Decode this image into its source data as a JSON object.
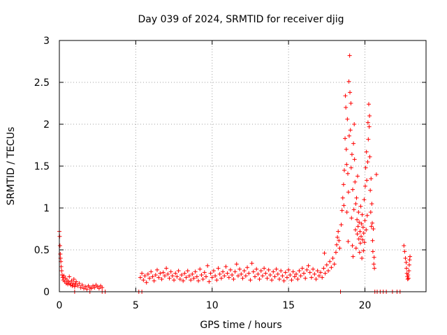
{
  "chart_data": {
    "type": "scatter",
    "title": "Day 039 of 2024, SRMTID for receiver djig",
    "xlabel": "GPS time / hours",
    "ylabel": "SRMTID / TECUs",
    "xlim": [
      0,
      24
    ],
    "ylim": [
      0,
      3
    ],
    "xticks": [
      0,
      5,
      10,
      15,
      20
    ],
    "xtick_labels": [
      "0",
      "5",
      "10",
      "15",
      "20"
    ],
    "yticks": [
      0,
      0.5,
      1,
      1.5,
      2,
      2.5,
      3
    ],
    "ytick_labels": [
      "0",
      "0.5",
      "1",
      "1.5",
      "2",
      "2.5",
      "3"
    ],
    "grid": true,
    "marker": "plus",
    "series_color": "#ff0000",
    "series": [
      {
        "name": "SRMTID",
        "points": [
          [
            0.0,
            0.72
          ],
          [
            0.02,
            0.66
          ],
          [
            0.04,
            0.55
          ],
          [
            0.06,
            0.45
          ],
          [
            0.08,
            0.4
          ],
          [
            0.1,
            0.36
          ],
          [
            0.12,
            0.3
          ],
          [
            0.15,
            0.25
          ],
          [
            0.18,
            0.2
          ],
          [
            0.22,
            0.17
          ],
          [
            0.26,
            0.14
          ],
          [
            0.3,
            0.19
          ],
          [
            0.35,
            0.12
          ],
          [
            0.4,
            0.16
          ],
          [
            0.45,
            0.1
          ],
          [
            0.5,
            0.14
          ],
          [
            0.55,
            0.09
          ],
          [
            0.6,
            0.12
          ],
          [
            0.65,
            0.18
          ],
          [
            0.7,
            0.1
          ],
          [
            0.75,
            0.08
          ],
          [
            0.8,
            0.13
          ],
          [
            0.85,
            0.07
          ],
          [
            0.9,
            0.1
          ],
          [
            0.95,
            0.15
          ],
          [
            1.0,
            0.06
          ],
          [
            1.0,
            0.0
          ],
          [
            1.05,
            0.09
          ],
          [
            1.1,
            0.12
          ],
          [
            1.2,
            0.07
          ],
          [
            1.3,
            0.1
          ],
          [
            1.4,
            0.05
          ],
          [
            1.5,
            0.08
          ],
          [
            1.6,
            0.04
          ],
          [
            1.7,
            0.06
          ],
          [
            1.8,
            0.03
          ],
          [
            1.9,
            0.07
          ],
          [
            2.0,
            0.05
          ],
          [
            2.0,
            0.0
          ],
          [
            2.1,
            0.04
          ],
          [
            2.2,
            0.07
          ],
          [
            2.3,
            0.05
          ],
          [
            2.4,
            0.08
          ],
          [
            2.5,
            0.06
          ],
          [
            2.6,
            0.04
          ],
          [
            2.7,
            0.07
          ],
          [
            2.8,
            0.05
          ],
          [
            2.8,
            0.0
          ],
          [
            3.0,
            0.0
          ],
          [
            5.2,
            0.0
          ],
          [
            5.4,
            0.0
          ],
          [
            5.3,
            0.17
          ],
          [
            5.4,
            0.22
          ],
          [
            5.5,
            0.14
          ],
          [
            5.6,
            0.19
          ],
          [
            5.7,
            0.11
          ],
          [
            5.8,
            0.21
          ],
          [
            5.9,
            0.16
          ],
          [
            6.0,
            0.24
          ],
          [
            6.1,
            0.18
          ],
          [
            6.2,
            0.13
          ],
          [
            6.3,
            0.2
          ],
          [
            6.4,
            0.26
          ],
          [
            6.5,
            0.17
          ],
          [
            6.6,
            0.22
          ],
          [
            6.7,
            0.15
          ],
          [
            6.8,
            0.23
          ],
          [
            6.9,
            0.19
          ],
          [
            7.0,
            0.28
          ],
          [
            7.1,
            0.21
          ],
          [
            7.2,
            0.16
          ],
          [
            7.3,
            0.24
          ],
          [
            7.4,
            0.19
          ],
          [
            7.5,
            0.14
          ],
          [
            7.6,
            0.22
          ],
          [
            7.7,
            0.18
          ],
          [
            7.8,
            0.25
          ],
          [
            7.9,
            0.15
          ],
          [
            8.0,
            0.2
          ],
          [
            8.1,
            0.13
          ],
          [
            8.2,
            0.22
          ],
          [
            8.3,
            0.17
          ],
          [
            8.4,
            0.25
          ],
          [
            8.5,
            0.19
          ],
          [
            8.6,
            0.14
          ],
          [
            8.7,
            0.21
          ],
          [
            8.8,
            0.16
          ],
          [
            8.9,
            0.24
          ],
          [
            9.0,
            0.18
          ],
          [
            9.1,
            0.13
          ],
          [
            9.2,
            0.27
          ],
          [
            9.3,
            0.2
          ],
          [
            9.4,
            0.15
          ],
          [
            9.5,
            0.23
          ],
          [
            9.6,
            0.18
          ],
          [
            9.7,
            0.31
          ],
          [
            9.8,
            0.12
          ],
          [
            9.9,
            0.22
          ],
          [
            10.0,
            0.17
          ],
          [
            10.1,
            0.25
          ],
          [
            10.2,
            0.19
          ],
          [
            10.3,
            0.14
          ],
          [
            10.4,
            0.28
          ],
          [
            10.5,
            0.21
          ],
          [
            10.6,
            0.16
          ],
          [
            10.7,
            0.24
          ],
          [
            10.8,
            0.19
          ],
          [
            10.9,
            0.3
          ],
          [
            11.0,
            0.22
          ],
          [
            11.1,
            0.17
          ],
          [
            11.2,
            0.26
          ],
          [
            11.3,
            0.2
          ],
          [
            11.4,
            0.15
          ],
          [
            11.5,
            0.24
          ],
          [
            11.6,
            0.33
          ],
          [
            11.7,
            0.19
          ],
          [
            11.8,
            0.27
          ],
          [
            11.9,
            0.21
          ],
          [
            12.0,
            0.16
          ],
          [
            12.1,
            0.25
          ],
          [
            12.2,
            0.19
          ],
          [
            12.3,
            0.29
          ],
          [
            12.4,
            0.22
          ],
          [
            12.5,
            0.14
          ],
          [
            12.6,
            0.34
          ],
          [
            12.7,
            0.24
          ],
          [
            12.8,
            0.18
          ],
          [
            12.9,
            0.27
          ],
          [
            13.0,
            0.21
          ],
          [
            13.1,
            0.15
          ],
          [
            13.2,
            0.25
          ],
          [
            13.3,
            0.19
          ],
          [
            13.4,
            0.28
          ],
          [
            13.5,
            0.22
          ],
          [
            13.6,
            0.16
          ],
          [
            13.7,
            0.26
          ],
          [
            13.8,
            0.2
          ],
          [
            13.9,
            0.14
          ],
          [
            14.0,
            0.24
          ],
          [
            14.1,
            0.18
          ],
          [
            14.2,
            0.27
          ],
          [
            14.3,
            0.21
          ],
          [
            14.4,
            0.15
          ],
          [
            14.5,
            0.25
          ],
          [
            14.6,
            0.19
          ],
          [
            14.7,
            0.13
          ],
          [
            14.8,
            0.23
          ],
          [
            14.9,
            0.17
          ],
          [
            15.0,
            0.26
          ],
          [
            15.1,
            0.2
          ],
          [
            15.2,
            0.14
          ],
          [
            15.3,
            0.24
          ],
          [
            15.4,
            0.18
          ],
          [
            15.5,
            0.21
          ],
          [
            15.6,
            0.15
          ],
          [
            15.7,
            0.25
          ],
          [
            15.8,
            0.19
          ],
          [
            15.9,
            0.28
          ],
          [
            16.0,
            0.22
          ],
          [
            16.1,
            0.16
          ],
          [
            16.2,
            0.26
          ],
          [
            16.3,
            0.31
          ],
          [
            16.4,
            0.23
          ],
          [
            16.5,
            0.17
          ],
          [
            16.6,
            0.27
          ],
          [
            16.7,
            0.21
          ],
          [
            16.8,
            0.15
          ],
          [
            16.9,
            0.25
          ],
          [
            17.0,
            0.19
          ],
          [
            17.1,
            0.23
          ],
          [
            17.2,
            0.17
          ],
          [
            17.3,
            0.28
          ],
          [
            17.35,
            0.46
          ],
          [
            17.4,
            0.22
          ],
          [
            17.5,
            0.32
          ],
          [
            17.6,
            0.25
          ],
          [
            17.7,
            0.36
          ],
          [
            17.8,
            0.29
          ],
          [
            17.9,
            0.4
          ],
          [
            18.0,
            0.33
          ],
          [
            18.1,
            0.47
          ],
          [
            18.15,
            0.56
          ],
          [
            18.2,
            0.65
          ],
          [
            18.25,
            0.72
          ],
          [
            18.3,
            0.61
          ],
          [
            18.35,
            0.52
          ],
          [
            18.4,
            0.0
          ],
          [
            18.45,
            0.8
          ],
          [
            18.5,
            0.97
          ],
          [
            18.55,
            1.12
          ],
          [
            18.6,
            1.28
          ],
          [
            18.62,
            1.03
          ],
          [
            18.65,
            1.45
          ],
          [
            18.7,
            1.83
          ],
          [
            18.72,
            2.34
          ],
          [
            18.75,
            2.2
          ],
          [
            18.78,
            1.7
          ],
          [
            18.8,
            1.52
          ],
          [
            18.82,
            0.95
          ],
          [
            18.85,
            2.06
          ],
          [
            18.88,
            1.41
          ],
          [
            18.9,
            0.6
          ],
          [
            18.92,
            1.19
          ],
          [
            18.95,
            2.51
          ],
          [
            18.97,
            1.86
          ],
          [
            19.0,
            2.82
          ],
          [
            19.02,
            2.38
          ],
          [
            19.05,
            1.93
          ],
          [
            19.08,
            2.25
          ],
          [
            19.1,
            1.48
          ],
          [
            19.12,
            0.88
          ],
          [
            19.15,
            1.64
          ],
          [
            19.18,
            0.55
          ],
          [
            19.2,
            1.22
          ],
          [
            19.22,
            0.42
          ],
          [
            19.25,
            1.77
          ],
          [
            19.28,
            0.98
          ],
          [
            19.3,
            2.0
          ],
          [
            19.32,
            1.58
          ],
          [
            19.35,
            1.31
          ],
          [
            19.38,
            0.74
          ],
          [
            19.4,
            1.05
          ],
          [
            19.42,
            0.52
          ],
          [
            19.45,
            1.12
          ],
          [
            19.48,
            0.86
          ],
          [
            19.5,
            0.69
          ],
          [
            19.52,
            1.38
          ],
          [
            19.55,
            0.78
          ],
          [
            19.58,
            0.95
          ],
          [
            19.6,
            0.63
          ],
          [
            19.62,
            0.83
          ],
          [
            19.65,
            0.47
          ],
          [
            19.68,
            0.72
          ],
          [
            19.7,
            0.58
          ],
          [
            19.72,
            1.02
          ],
          [
            19.75,
            0.66
          ],
          [
            19.78,
            0.81
          ],
          [
            19.8,
            0.4
          ],
          [
            19.82,
            0.92
          ],
          [
            19.85,
            0.62
          ],
          [
            19.88,
            0.77
          ],
          [
            19.9,
            0.49
          ],
          [
            19.92,
            0.7
          ],
          [
            19.95,
            1.1
          ],
          [
            19.97,
            0.59
          ],
          [
            20.0,
            0.85
          ],
          [
            20.02,
            1.26
          ],
          [
            20.05,
            1.48
          ],
          [
            20.08,
            0.74
          ],
          [
            20.1,
            1.67
          ],
          [
            20.12,
            1.33
          ],
          [
            20.15,
            0.91
          ],
          [
            20.18,
            1.55
          ],
          [
            20.2,
            2.02
          ],
          [
            20.22,
            1.82
          ],
          [
            20.25,
            2.24
          ],
          [
            20.28,
            1.97
          ],
          [
            20.3,
            2.1
          ],
          [
            20.32,
            1.61
          ],
          [
            20.35,
            1.21
          ],
          [
            20.38,
            0.95
          ],
          [
            20.4,
            1.35
          ],
          [
            20.42,
            0.78
          ],
          [
            20.45,
            1.05
          ],
          [
            20.48,
            0.82
          ],
          [
            20.5,
            0.61
          ],
          [
            20.52,
            0.48
          ],
          [
            20.55,
            0.75
          ],
          [
            20.58,
            0.33
          ],
          [
            20.6,
            0.41
          ],
          [
            20.62,
            0.28
          ],
          [
            20.65,
            0.0
          ],
          [
            20.75,
            1.4
          ],
          [
            20.8,
            0.0
          ],
          [
            21.0,
            0.0
          ],
          [
            21.2,
            0.0
          ],
          [
            21.4,
            0.0
          ],
          [
            21.8,
            0.0
          ],
          [
            22.1,
            0.0
          ],
          [
            22.3,
            0.0
          ],
          [
            22.55,
            0.55
          ],
          [
            22.6,
            0.48
          ],
          [
            22.65,
            0.4
          ],
          [
            22.7,
            0.35
          ],
          [
            22.72,
            0.28
          ],
          [
            22.75,
            0.22
          ],
          [
            22.78,
            0.18
          ],
          [
            22.8,
            0.15
          ],
          [
            22.82,
            0.2
          ],
          [
            22.85,
            0.16
          ],
          [
            22.88,
            0.25
          ],
          [
            22.9,
            0.32
          ],
          [
            22.92,
            0.38
          ],
          [
            22.95,
            0.42
          ]
        ]
      }
    ]
  }
}
